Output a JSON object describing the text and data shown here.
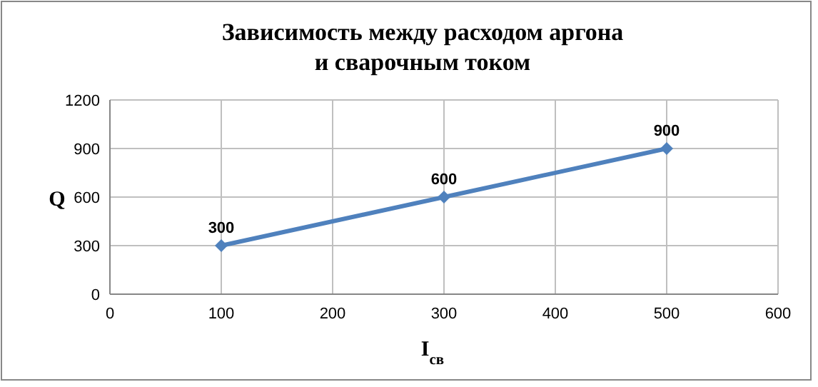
{
  "chart_data": {
    "type": "line",
    "title": "Зависимость между расходом аргона\nи сварочным током",
    "xlabel": "I$_{св}$",
    "ylabel": "Q",
    "x": [
      100,
      300,
      500
    ],
    "series": [
      {
        "color": "#4f81bd",
        "values": [
          300,
          600,
          900
        ]
      }
    ],
    "xlim": [
      0,
      600
    ],
    "xticks": [
      0,
      100,
      200,
      300,
      400,
      500,
      600
    ],
    "ylim": [
      0,
      1200
    ],
    "yticks": [
      0,
      300,
      600,
      900,
      1200
    ],
    "grid": true,
    "marker": "diamond",
    "line_style": "solid",
    "data_labels": true
  }
}
